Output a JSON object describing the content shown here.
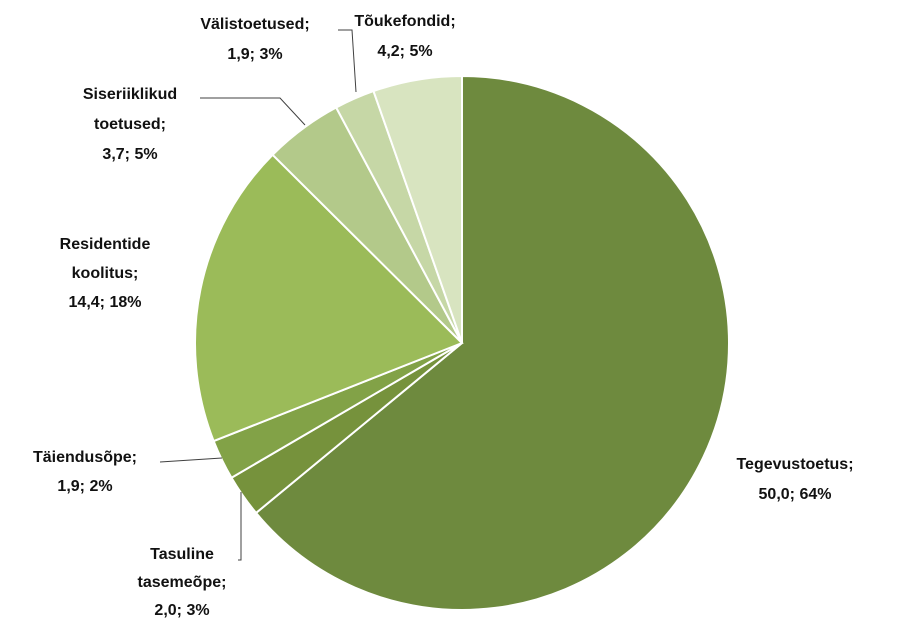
{
  "chart_data": {
    "type": "pie",
    "categories": [
      "Tegevustoetus;",
      "Tasuline tasemeõpe;",
      "Täiendusõpe;",
      "Residentide koolitus;",
      "Siseriiklikud toetused;",
      "Välistoetused;",
      "Tõukefondid;"
    ],
    "values": [
      50.0,
      2.0,
      1.9,
      14.4,
      3.7,
      1.9,
      4.2
    ],
    "value_labels": [
      "50,0; 64%",
      "2,0; 3%",
      "1,9; 2%",
      "14,4; 18%",
      "3,7; 5%",
      "1,9; 3%",
      "4,2; 5%"
    ],
    "colors": [
      "#6e8a3e",
      "#76923c",
      "#82a247",
      "#9bbb59",
      "#b3c98a",
      "#c6d7a6",
      "#d8e4c0"
    ]
  }
}
